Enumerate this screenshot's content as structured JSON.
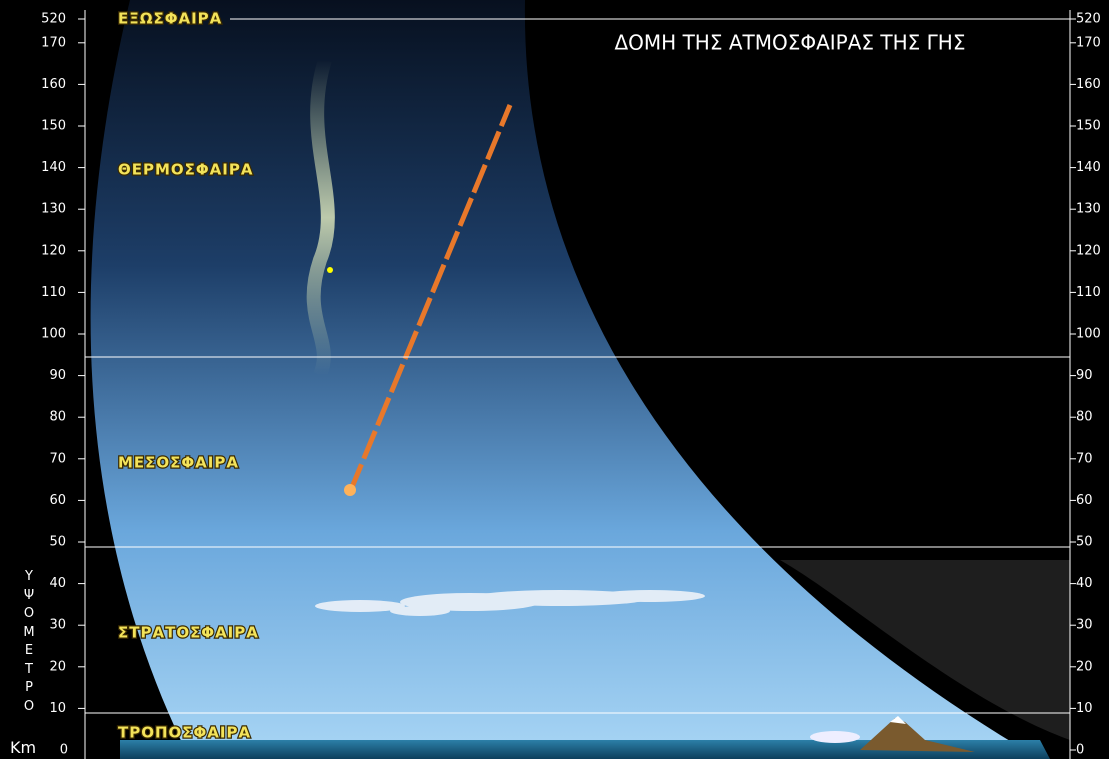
{
  "title": "ΔΟΜΗ  ΤΗΣ ΑΤΜΟΣΦΑΙΡΑΣ ΤΗΣ ΓΗΣ",
  "layers": [
    "ΕΞΩΣΦΑΙΡΑ",
    "ΘΕΡΜΟΣΦΑΙΡΑ",
    "ΜΕΣΟΣΦΑΙΡΑ",
    "ΣΤΡΑΤΟΣΦΑΙΡΑ",
    "ΤΡΟΠΟΣΦΑΙΡΑ"
  ],
  "left_axis": {
    "label": "ΥΨΟΜΕΤΡΟ",
    "unit": "Km",
    "ticks": [
      "0",
      "10",
      "20",
      "30",
      "40",
      "50",
      "60",
      "70",
      "80",
      "90",
      "100",
      "110",
      "120",
      "130",
      "140",
      "150",
      "160",
      "170",
      "520"
    ]
  },
  "right_axis": {
    "ticks": [
      "0",
      "10",
      "20",
      "30",
      "40",
      "50",
      "60",
      "70",
      "80",
      "90",
      "100",
      "110",
      "120",
      "130",
      "140",
      "150",
      "160",
      "170",
      "520"
    ]
  }
}
